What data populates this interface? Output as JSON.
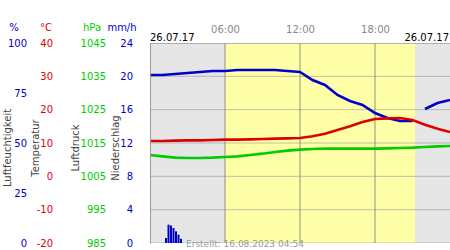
{
  "header": {
    "left": "26.07.17",
    "right": "26.07.17"
  },
  "footer": "Erstellt: 16.08.2023 04:54",
  "chart_data": [
    {
      "type": "line",
      "unit": "%",
      "y_label": "Luftfeuchtigkeit",
      "x": [
        0,
        1,
        2,
        3,
        4,
        5,
        6,
        7,
        8,
        9,
        10,
        11,
        12,
        13,
        14,
        15,
        16,
        17,
        18,
        19,
        20,
        21,
        21.5,
        22,
        23,
        24
      ],
      "ylim": [
        0,
        100
      ],
      "yticks": [
        0,
        25,
        50,
        75,
        100
      ],
      "series": [
        {
          "color": "#0000cc",
          "values": [
            84,
            84,
            84.5,
            85,
            85.5,
            86,
            86,
            86.5,
            86.5,
            86.5,
            86.5,
            86,
            85.5,
            81.5,
            79,
            74,
            71,
            69,
            65,
            62.5,
            61,
            61,
            null,
            67,
            70,
            71.5
          ]
        }
      ]
    },
    {
      "type": "line",
      "unit": "°C",
      "y_label": "Temperatur",
      "x": [
        0,
        1,
        2,
        3,
        4,
        5,
        6,
        7,
        8,
        9,
        10,
        11,
        12,
        13,
        14,
        15,
        16,
        17,
        18,
        19,
        20,
        21,
        22,
        23,
        24
      ],
      "xlim": [
        0,
        24
      ],
      "xticks": [
        {
          "value": 6,
          "label": "06:00"
        },
        {
          "value": 12,
          "label": "12:00"
        },
        {
          "value": 18,
          "label": "18:00"
        }
      ],
      "daylight": [
        6,
        21.2
      ],
      "grid": true,
      "ylim": [
        -20,
        40
      ],
      "yticks": [
        -20,
        -10,
        0,
        10,
        20,
        30,
        40
      ],
      "series": [
        {
          "color": "#dd0000",
          "values": [
            10.6,
            10.6,
            10.7,
            10.8,
            10.8,
            10.9,
            11,
            11,
            11.1,
            11.2,
            11.3,
            11.4,
            11.5,
            12,
            12.8,
            13.9,
            15,
            16.3,
            17.2,
            17.4,
            17.5,
            16.9,
            15.5,
            14.3,
            13.3
          ]
        }
      ]
    },
    {
      "type": "line",
      "unit": "hPa",
      "y_label": "Luftdruck",
      "x": [
        0,
        1,
        2,
        3,
        4,
        5,
        6,
        7,
        8,
        9,
        10,
        11,
        12,
        13,
        14,
        15,
        16,
        17,
        18,
        19,
        20,
        21,
        22,
        23,
        24
      ],
      "ylim": [
        985,
        1045
      ],
      "yticks": [
        985,
        995,
        1005,
        1015,
        1025,
        1035,
        1045
      ],
      "series": [
        {
          "color": "#00cc00",
          "values": [
            1011.4,
            1011,
            1010.6,
            1010.5,
            1010.5,
            1010.6,
            1010.8,
            1011,
            1011.4,
            1011.8,
            1012.3,
            1012.7,
            1013,
            1013.2,
            1013.3,
            1013.3,
            1013.3,
            1013.3,
            1013.3,
            1013.4,
            1013.5,
            1013.6,
            1013.8,
            1014,
            1014.1
          ]
        }
      ]
    },
    {
      "type": "bar",
      "unit": "mm/h",
      "y_label": "Niederschlag",
      "x": [
        1.2,
        1.4,
        1.6,
        1.8,
        2.0,
        2.2,
        2.4
      ],
      "ylim": [
        0,
        24
      ],
      "yticks": [
        0,
        4,
        8,
        12,
        16,
        20,
        24
      ],
      "series": [
        {
          "color": "#0000cc",
          "values": [
            0.6,
            2.2,
            2.1,
            1.8,
            1.4,
            1.0,
            0.5
          ]
        }
      ]
    }
  ]
}
